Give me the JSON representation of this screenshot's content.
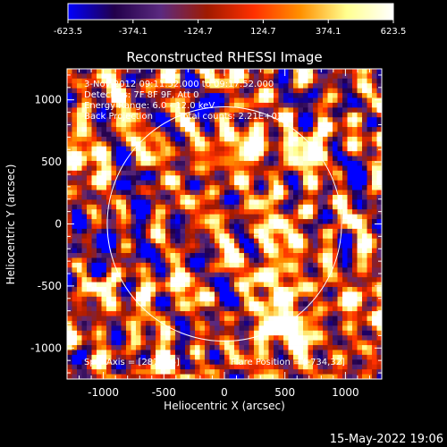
{
  "colorbar": {
    "ticks": [
      -623.5,
      -374.1,
      -124.7,
      124.7,
      374.1,
      623.5
    ],
    "tick_labels": [
      "-623.5",
      "-374.1",
      "-124.7",
      "124.7",
      "374.1",
      "623.5"
    ],
    "colormap": [
      "#0000ff",
      "#22004a",
      "#5b2a80",
      "#a01a00",
      "#ff3000",
      "#ff9000",
      "#ffff90",
      "#ffffff"
    ]
  },
  "chart_data": {
    "type": "heatmap",
    "title": "Reconstructed RHESSI Image",
    "xlabel": "Heliocentric X (arcsec)",
    "ylabel": "Heliocentric Y (arcsec)",
    "xlim": [
      -1300,
      1300
    ],
    "ylim": [
      -1250,
      1250
    ],
    "x_ticks": [
      -1000,
      -500,
      0,
      500,
      1000
    ],
    "x_tick_labels": [
      "-1000",
      "-500",
      "0",
      "500",
      "1000"
    ],
    "y_ticks": [
      -1000,
      -500,
      0,
      500,
      1000
    ],
    "y_tick_labels": [
      "-1000",
      "-500",
      "0",
      "500",
      "1000"
    ],
    "value_range": [
      -623.5,
      623.5
    ],
    "solar_limb_center": [
      0,
      0
    ],
    "solar_limb_radius": 968,
    "crosshair": [
      287,
      -96
    ],
    "info_lines": [
      "3-Nov-2012 09:11:52.000 to 09:17:52.000",
      "Detectors: 7F 8F 9F, Att 0",
      "Energy Range: 6.0 - 12.0 keV",
      "Back Projection",
      "Total counts: 2.21E+03"
    ],
    "spin_axis": "Spin Axis = [287,-96]",
    "flare_position": "Flare Position = [-734,32]"
  },
  "footer": {
    "date": "15-May-2022 19:06"
  }
}
